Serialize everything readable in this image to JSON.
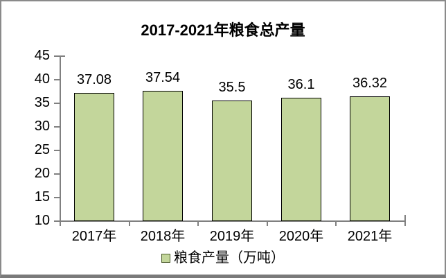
{
  "chart_data": {
    "type": "bar",
    "title": "2017-2021年粮食总产量",
    "categories": [
      "2017年",
      "2018年",
      "2019年",
      "2020年",
      "2021年"
    ],
    "series": [
      {
        "name": "粮食产量（万吨）",
        "values": [
          37.08,
          37.54,
          35.5,
          36.1,
          36.32
        ]
      }
    ],
    "data_labels": [
      "37.08",
      "37.54",
      "35.5",
      "36.1",
      "36.32"
    ],
    "yticks": [
      10,
      15,
      20,
      25,
      30,
      35,
      40,
      45
    ],
    "ylim": [
      10,
      45
    ],
    "grid": false,
    "legend_position": "bottom",
    "colors": {
      "bar_fill": "#C3D69B",
      "bar_border": "#000000",
      "axis": "#808080",
      "text": "#000000",
      "frame_border": "#8A8A8A"
    }
  },
  "legend": {
    "label": "粮食产量（万吨）"
  }
}
